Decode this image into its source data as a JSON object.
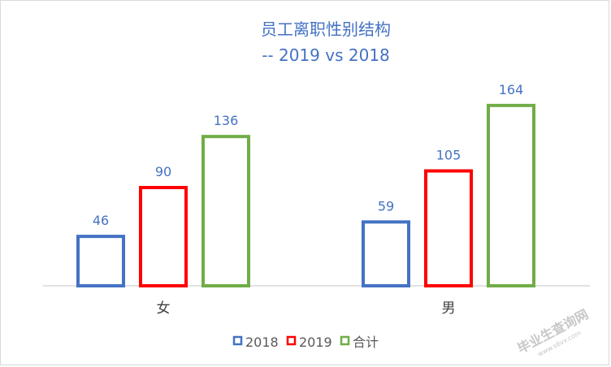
{
  "chart_data": {
    "type": "bar",
    "title": "员工离职性别结构",
    "subtitle": "-- 2019 vs 2018",
    "categories": [
      "女",
      "男"
    ],
    "series": [
      {
        "name": "2018",
        "values": [
          46,
          59
        ],
        "color": "#4472c4"
      },
      {
        "name": "2019",
        "values": [
          90,
          105
        ],
        "color": "#ff0000"
      },
      {
        "name": "合计",
        "values": [
          136,
          164
        ],
        "color": "#70ad47"
      }
    ],
    "ylim": [
      0,
      180
    ],
    "grid": false,
    "legend_position": "bottom",
    "xlabel": "",
    "ylabel": ""
  },
  "watermark": {
    "text": "毕业生查询网",
    "subtext": "www.s6vv.com"
  }
}
